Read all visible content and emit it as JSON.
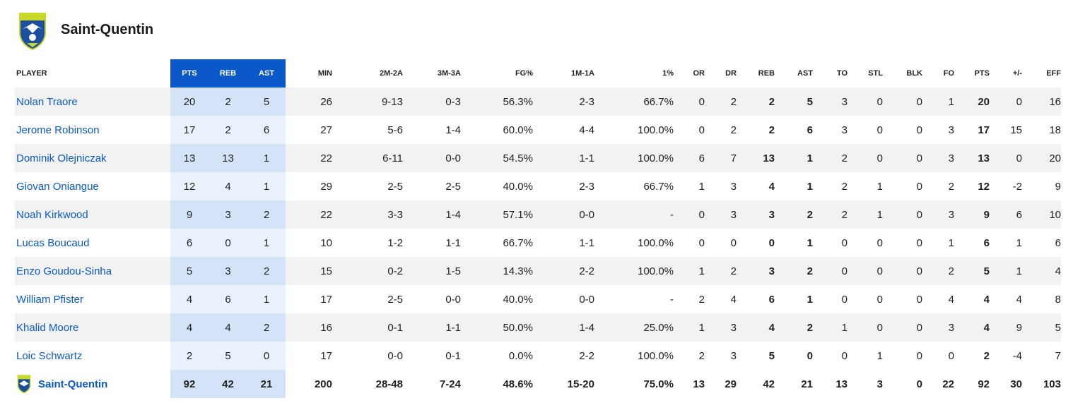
{
  "team": {
    "name": "Saint-Quentin",
    "logo": "team-crest-icon"
  },
  "columns": {
    "player": "PLAYER",
    "pts": "PTS",
    "reb": "REB",
    "ast": "AST",
    "min": "MIN",
    "two": "2M-2A",
    "three": "3M-3A",
    "fg": "FG%",
    "ft": "1M-1A",
    "ftpct": "1%",
    "or": "OR",
    "dr": "DR",
    "reb2": "REB",
    "ast2": "AST",
    "to": "TO",
    "stl": "STL",
    "blk": "BLK",
    "fo": "FO",
    "pts2": "PTS",
    "pm": "+/-",
    "eff": "EFF"
  },
  "rows": [
    {
      "name": "Nolan Traore",
      "pts": "20",
      "reb": "2",
      "ast": "5",
      "min": "26",
      "two": "9-13",
      "three": "0-3",
      "fg": "56.3%",
      "ft": "2-3",
      "ftpct": "66.7%",
      "or": "0",
      "dr": "2",
      "reb2": "2",
      "ast2": "5",
      "to": "3",
      "stl": "0",
      "blk": "0",
      "fo": "1",
      "pts2": "20",
      "pm": "0",
      "eff": "16"
    },
    {
      "name": "Jerome Robinson",
      "pts": "17",
      "reb": "2",
      "ast": "6",
      "min": "27",
      "two": "5-6",
      "three": "1-4",
      "fg": "60.0%",
      "ft": "4-4",
      "ftpct": "100.0%",
      "or": "0",
      "dr": "2",
      "reb2": "2",
      "ast2": "6",
      "to": "3",
      "stl": "0",
      "blk": "0",
      "fo": "3",
      "pts2": "17",
      "pm": "15",
      "eff": "18"
    },
    {
      "name": "Dominik Olejniczak",
      "pts": "13",
      "reb": "13",
      "ast": "1",
      "min": "22",
      "two": "6-11",
      "three": "0-0",
      "fg": "54.5%",
      "ft": "1-1",
      "ftpct": "100.0%",
      "or": "6",
      "dr": "7",
      "reb2": "13",
      "ast2": "1",
      "to": "2",
      "stl": "0",
      "blk": "0",
      "fo": "3",
      "pts2": "13",
      "pm": "0",
      "eff": "20"
    },
    {
      "name": "Giovan Oniangue",
      "pts": "12",
      "reb": "4",
      "ast": "1",
      "min": "29",
      "two": "2-5",
      "three": "2-5",
      "fg": "40.0%",
      "ft": "2-3",
      "ftpct": "66.7%",
      "or": "1",
      "dr": "3",
      "reb2": "4",
      "ast2": "1",
      "to": "2",
      "stl": "1",
      "blk": "0",
      "fo": "2",
      "pts2": "12",
      "pm": "-2",
      "eff": "9"
    },
    {
      "name": "Noah Kirkwood",
      "pts": "9",
      "reb": "3",
      "ast": "2",
      "min": "22",
      "two": "3-3",
      "three": "1-4",
      "fg": "57.1%",
      "ft": "0-0",
      "ftpct": "-",
      "or": "0",
      "dr": "3",
      "reb2": "3",
      "ast2": "2",
      "to": "2",
      "stl": "1",
      "blk": "0",
      "fo": "3",
      "pts2": "9",
      "pm": "6",
      "eff": "10"
    },
    {
      "name": "Lucas Boucaud",
      "pts": "6",
      "reb": "0",
      "ast": "1",
      "min": "10",
      "two": "1-2",
      "three": "1-1",
      "fg": "66.7%",
      "ft": "1-1",
      "ftpct": "100.0%",
      "or": "0",
      "dr": "0",
      "reb2": "0",
      "ast2": "1",
      "to": "0",
      "stl": "0",
      "blk": "0",
      "fo": "1",
      "pts2": "6",
      "pm": "1",
      "eff": "6"
    },
    {
      "name": "Enzo Goudou-Sinha",
      "pts": "5",
      "reb": "3",
      "ast": "2",
      "min": "15",
      "two": "0-2",
      "three": "1-5",
      "fg": "14.3%",
      "ft": "2-2",
      "ftpct": "100.0%",
      "or": "1",
      "dr": "2",
      "reb2": "3",
      "ast2": "2",
      "to": "0",
      "stl": "0",
      "blk": "0",
      "fo": "2",
      "pts2": "5",
      "pm": "1",
      "eff": "4"
    },
    {
      "name": "William Pfister",
      "pts": "4",
      "reb": "6",
      "ast": "1",
      "min": "17",
      "two": "2-5",
      "three": "0-0",
      "fg": "40.0%",
      "ft": "0-0",
      "ftpct": "-",
      "or": "2",
      "dr": "4",
      "reb2": "6",
      "ast2": "1",
      "to": "0",
      "stl": "0",
      "blk": "0",
      "fo": "4",
      "pts2": "4",
      "pm": "4",
      "eff": "8"
    },
    {
      "name": "Khalid Moore",
      "pts": "4",
      "reb": "4",
      "ast": "2",
      "min": "16",
      "two": "0-1",
      "three": "1-1",
      "fg": "50.0%",
      "ft": "1-4",
      "ftpct": "25.0%",
      "or": "1",
      "dr": "3",
      "reb2": "4",
      "ast2": "2",
      "to": "1",
      "stl": "0",
      "blk": "0",
      "fo": "3",
      "pts2": "4",
      "pm": "9",
      "eff": "5"
    },
    {
      "name": "Loic Schwartz",
      "pts": "2",
      "reb": "5",
      "ast": "0",
      "min": "17",
      "two": "0-0",
      "three": "0-1",
      "fg": "0.0%",
      "ft": "2-2",
      "ftpct": "100.0%",
      "or": "2",
      "dr": "3",
      "reb2": "5",
      "ast2": "0",
      "to": "0",
      "stl": "1",
      "blk": "0",
      "fo": "0",
      "pts2": "2",
      "pm": "-4",
      "eff": "7"
    }
  ],
  "totals": {
    "name": "Saint-Quentin",
    "pts": "92",
    "reb": "42",
    "ast": "21",
    "min": "200",
    "two": "28-48",
    "three": "7-24",
    "fg": "48.6%",
    "ft": "15-20",
    "ftpct": "75.0%",
    "or": "13",
    "dr": "29",
    "reb2": "42",
    "ast2": "21",
    "to": "13",
    "stl": "3",
    "blk": "0",
    "fo": "22",
    "pts2": "92",
    "pm": "30",
    "eff": "103"
  },
  "colors": {
    "accent": "#0a58ca",
    "highlight_dark": "#d4e3f8",
    "highlight_light": "#eaf2fd",
    "row_alt": "#f2f2f2"
  }
}
